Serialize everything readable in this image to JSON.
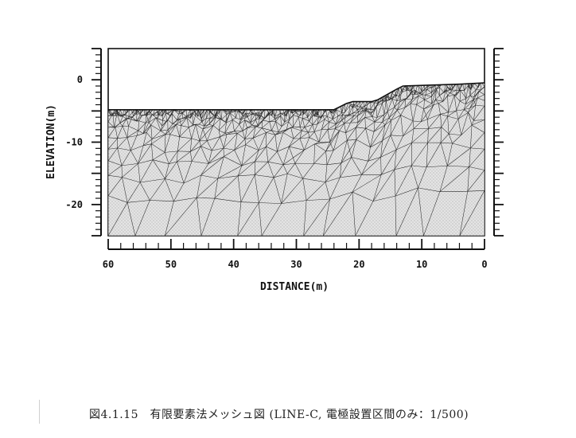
{
  "chart_data": {
    "type": "mesh",
    "xlabel": "DISTANCE(m)",
    "ylabel": "ELEVATION(m)",
    "x_axis_direction": "reversed",
    "xlim": [
      0,
      60
    ],
    "ylim": [
      -25,
      5
    ],
    "x_ticks": [
      60,
      50,
      40,
      30,
      20,
      10,
      0
    ],
    "y_ticks": [
      0,
      -10,
      -20
    ],
    "surface_profile": {
      "x": [
        60,
        24,
        23,
        22,
        21,
        18,
        17,
        14,
        13,
        4,
        0
      ],
      "y": [
        -4.8,
        -4.8,
        -4.3,
        -3.8,
        -3.5,
        -3.5,
        -3.2,
        -1.5,
        -1.0,
        -0.7,
        -0.5
      ]
    },
    "bottom_elevation": -25
  },
  "caption": {
    "text": "図4.1.15　有限要素法メッシュ図 (LINE-C, 電極設置区間のみ：1/500)"
  }
}
